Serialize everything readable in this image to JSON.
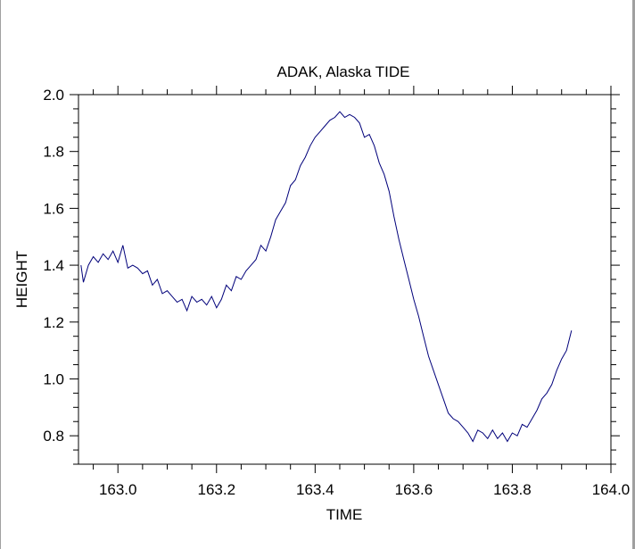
{
  "chart_data": {
    "type": "line",
    "title": "ADAK, Alaska TIDE",
    "xlabel": "TIME",
    "ylabel": "HEIGHT",
    "xlim": [
      162.92,
      164.0
    ],
    "ylim": [
      0.7,
      2.0
    ],
    "x_ticks": [
      163.0,
      163.2,
      163.4,
      163.6,
      163.8,
      164.0
    ],
    "x_tick_labels": [
      "163.0",
      "163.2",
      "163.4",
      "163.6",
      "163.8",
      "164.0"
    ],
    "y_ticks": [
      0.8,
      1.0,
      1.2,
      1.4,
      1.6,
      1.8,
      2.0
    ],
    "y_tick_labels": [
      "0.8",
      "1.0",
      "1.2",
      "1.4",
      "1.6",
      "1.8",
      "2.0"
    ],
    "grid": false,
    "line_color": "#00007a",
    "series": [
      {
        "x": [
          162.925,
          162.93,
          162.94,
          162.95,
          162.96,
          162.97,
          162.98,
          162.99,
          163.0,
          163.01,
          163.02,
          163.03,
          163.04,
          163.05,
          163.06,
          163.07,
          163.08,
          163.09,
          163.1,
          163.11,
          163.12,
          163.13,
          163.14,
          163.15,
          163.16,
          163.17,
          163.18,
          163.19,
          163.2,
          163.21,
          163.22,
          163.23,
          163.24,
          163.25,
          163.26,
          163.27,
          163.28,
          163.29,
          163.3,
          163.31,
          163.32,
          163.33,
          163.34,
          163.35,
          163.36,
          163.37,
          163.38,
          163.39,
          163.4,
          163.41,
          163.42,
          163.43,
          163.44,
          163.45,
          163.46,
          163.47,
          163.48,
          163.49,
          163.5,
          163.51,
          163.52,
          163.53,
          163.54,
          163.55,
          163.56,
          163.57,
          163.58,
          163.59,
          163.6,
          163.61,
          163.62,
          163.63,
          163.64,
          163.65,
          163.66,
          163.67,
          163.68,
          163.69,
          163.7,
          163.71,
          163.72,
          163.73,
          163.74,
          163.75,
          163.76,
          163.77,
          163.78,
          163.79,
          163.8,
          163.81,
          163.82,
          163.83,
          163.84,
          163.85,
          163.86,
          163.87,
          163.88,
          163.89,
          163.9,
          163.91,
          163.92
        ],
        "values": [
          1.4,
          1.34,
          1.4,
          1.43,
          1.41,
          1.44,
          1.42,
          1.45,
          1.41,
          1.47,
          1.39,
          1.4,
          1.39,
          1.37,
          1.38,
          1.33,
          1.35,
          1.3,
          1.31,
          1.29,
          1.27,
          1.28,
          1.24,
          1.29,
          1.27,
          1.28,
          1.26,
          1.29,
          1.25,
          1.28,
          1.33,
          1.31,
          1.36,
          1.35,
          1.38,
          1.4,
          1.42,
          1.47,
          1.45,
          1.5,
          1.56,
          1.59,
          1.62,
          1.68,
          1.7,
          1.75,
          1.78,
          1.82,
          1.85,
          1.87,
          1.89,
          1.91,
          1.92,
          1.94,
          1.92,
          1.93,
          1.92,
          1.9,
          1.85,
          1.86,
          1.82,
          1.76,
          1.72,
          1.66,
          1.57,
          1.49,
          1.42,
          1.35,
          1.28,
          1.22,
          1.15,
          1.08,
          1.03,
          0.98,
          0.93,
          0.88,
          0.86,
          0.85,
          0.83,
          0.81,
          0.78,
          0.82,
          0.81,
          0.79,
          0.82,
          0.79,
          0.81,
          0.78,
          0.81,
          0.8,
          0.84,
          0.83,
          0.86,
          0.89,
          0.93,
          0.95,
          0.98,
          1.03,
          1.07,
          1.1,
          1.17
        ]
      }
    ]
  }
}
